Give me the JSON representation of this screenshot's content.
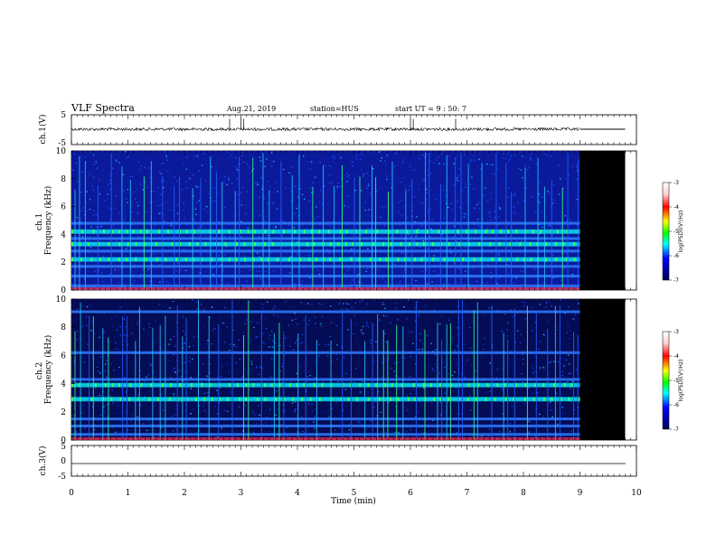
{
  "header": {
    "title": "VLF Spectra",
    "date": "Aug.21, 2019",
    "station": "station=HUS",
    "start": "start UT =  9 : 50: 7"
  },
  "colorbar": {
    "label": "log(PSD)(V²/Hz)",
    "ticks": [
      "-3",
      "-4",
      "-5",
      "-6",
      "-7"
    ],
    "colors": [
      "#ffffff",
      "#ff0000",
      "#ffff00",
      "#00ff00",
      "#00ffff",
      "#0000ff",
      "#000066"
    ]
  },
  "chart_data": [
    {
      "type": "line",
      "panel": "ch1-waveform",
      "ylabel": "ch.1(V)",
      "ylim": [
        -5,
        5
      ],
      "yticks": [
        "5",
        "-5"
      ],
      "x": [
        0,
        9,
        9.8
      ],
      "baseline_value": 0,
      "note_values": "noisy waveform near 0 V with spikes up to ~3 V until 9 min, flat afterwards"
    },
    {
      "type": "heatmap",
      "panel": "ch1-spectrogram",
      "ylabel": "ch.1\nFrequency (kHz)",
      "ylim": [
        0,
        10
      ],
      "yticks": [
        "0",
        "2",
        "4",
        "6",
        "8",
        "10"
      ],
      "data_end_min": 9.0,
      "record_end_min": 9.8,
      "bands_khz": [
        0.3,
        1.0,
        1.7,
        2.2,
        2.8,
        3.3,
        3.7,
        4.2,
        4.8
      ],
      "strong_bands_khz": [
        2.2,
        3.3,
        4.2
      ]
    },
    {
      "type": "heatmap",
      "panel": "ch2-spectrogram",
      "ylabel": "ch.2\nFrequency (kHz)",
      "ylim": [
        0,
        10
      ],
      "yticks": [
        "0",
        "2",
        "4",
        "6",
        "8",
        "10"
      ],
      "data_end_min": 9.0,
      "record_end_min": 9.8,
      "bands_khz": [
        0.4,
        1.0,
        1.5,
        2.9,
        3.9,
        4.3,
        6.2,
        9.1
      ],
      "strong_bands_khz": [
        2.9,
        3.9
      ]
    },
    {
      "type": "line",
      "panel": "ch3-waveform",
      "ylabel": "ch.3(V)",
      "ylim": [
        -5,
        5
      ],
      "yticks": [
        "5",
        "0",
        "-5"
      ],
      "x": [
        0,
        9.8
      ],
      "y": [
        -1.2,
        -1.2
      ]
    }
  ],
  "xaxis": {
    "label": "Time (min)",
    "ticks": [
      "0",
      "1",
      "2",
      "3",
      "4",
      "5",
      "6",
      "7",
      "8",
      "9",
      "10"
    ],
    "xlim": [
      0,
      10
    ]
  }
}
